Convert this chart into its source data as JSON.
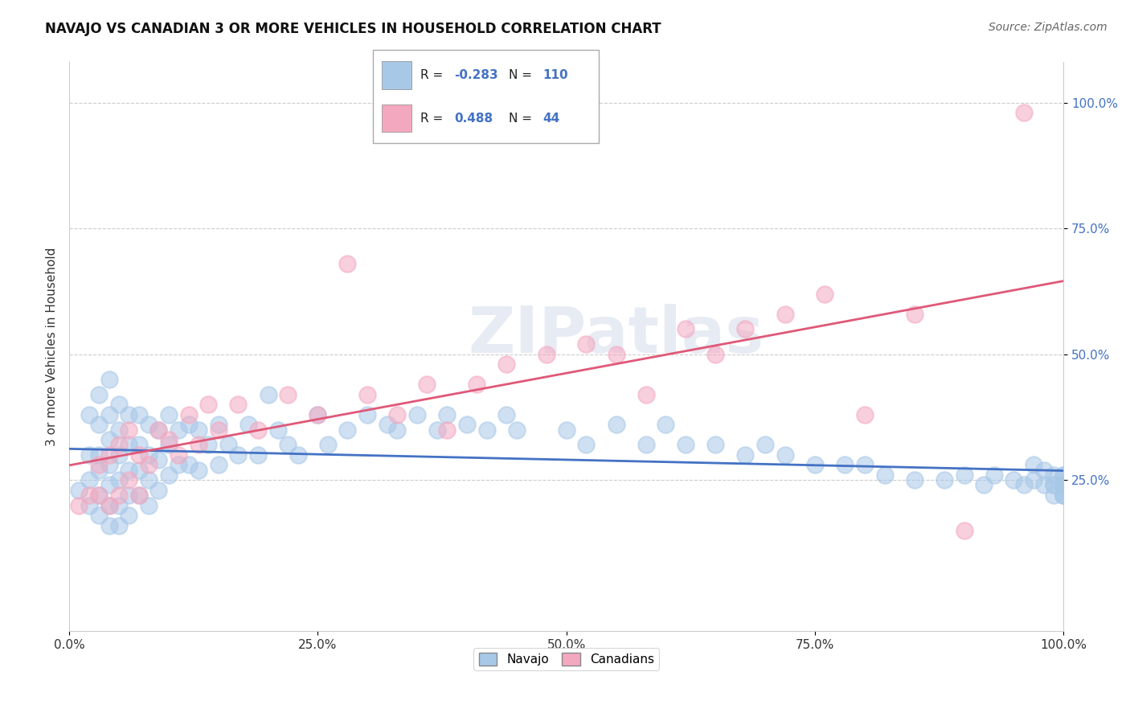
{
  "title": "NAVAJO VS CANADIAN 3 OR MORE VEHICLES IN HOUSEHOLD CORRELATION CHART",
  "source": "Source: ZipAtlas.com",
  "ylabel": "3 or more Vehicles in Household",
  "xlim": [
    0,
    1
  ],
  "ylim": [
    -0.05,
    1.08
  ],
  "xtick_labels": [
    "0.0%",
    "25.0%",
    "50.0%",
    "75.0%",
    "100.0%"
  ],
  "xtick_vals": [
    0,
    0.25,
    0.5,
    0.75,
    1.0
  ],
  "ytick_labels": [
    "25.0%",
    "50.0%",
    "75.0%",
    "100.0%"
  ],
  "ytick_vals": [
    0.25,
    0.5,
    0.75,
    1.0
  ],
  "navajo_R": -0.283,
  "navajo_N": 110,
  "canadian_R": 0.488,
  "canadian_N": 44,
  "navajo_color": "#a8c8e8",
  "canadian_color": "#f4a8c0",
  "navajo_line_color": "#4472C4",
  "canadian_line_color": "#e05878",
  "watermark": "ZIPatlas",
  "navajo_x": [
    0.01,
    0.02,
    0.02,
    0.02,
    0.02,
    0.03,
    0.03,
    0.03,
    0.03,
    0.03,
    0.03,
    0.04,
    0.04,
    0.04,
    0.04,
    0.04,
    0.04,
    0.04,
    0.05,
    0.05,
    0.05,
    0.05,
    0.05,
    0.05,
    0.06,
    0.06,
    0.06,
    0.06,
    0.06,
    0.07,
    0.07,
    0.07,
    0.07,
    0.08,
    0.08,
    0.08,
    0.08,
    0.09,
    0.09,
    0.09,
    0.1,
    0.1,
    0.1,
    0.11,
    0.11,
    0.12,
    0.12,
    0.13,
    0.13,
    0.14,
    0.15,
    0.15,
    0.16,
    0.17,
    0.18,
    0.19,
    0.2,
    0.21,
    0.22,
    0.23,
    0.25,
    0.26,
    0.28,
    0.3,
    0.32,
    0.33,
    0.35,
    0.37,
    0.38,
    0.4,
    0.42,
    0.44,
    0.45,
    0.5,
    0.52,
    0.55,
    0.58,
    0.6,
    0.62,
    0.65,
    0.68,
    0.7,
    0.72,
    0.75,
    0.78,
    0.8,
    0.82,
    0.85,
    0.88,
    0.9,
    0.92,
    0.93,
    0.95,
    0.96,
    0.97,
    0.97,
    0.98,
    0.98,
    0.99,
    0.99,
    0.99,
    0.99,
    1.0,
    1.0,
    1.0,
    1.0,
    1.0,
    1.0,
    1.0,
    1.0
  ],
  "navajo_y": [
    0.23,
    0.38,
    0.3,
    0.25,
    0.2,
    0.42,
    0.36,
    0.3,
    0.27,
    0.22,
    0.18,
    0.45,
    0.38,
    0.33,
    0.28,
    0.24,
    0.2,
    0.16,
    0.4,
    0.35,
    0.3,
    0.25,
    0.2,
    0.16,
    0.38,
    0.32,
    0.27,
    0.22,
    0.18,
    0.38,
    0.32,
    0.27,
    0.22,
    0.36,
    0.3,
    0.25,
    0.2,
    0.35,
    0.29,
    0.23,
    0.38,
    0.32,
    0.26,
    0.35,
    0.28,
    0.36,
    0.28,
    0.35,
    0.27,
    0.32,
    0.36,
    0.28,
    0.32,
    0.3,
    0.36,
    0.3,
    0.42,
    0.35,
    0.32,
    0.3,
    0.38,
    0.32,
    0.35,
    0.38,
    0.36,
    0.35,
    0.38,
    0.35,
    0.38,
    0.36,
    0.35,
    0.38,
    0.35,
    0.35,
    0.32,
    0.36,
    0.32,
    0.36,
    0.32,
    0.32,
    0.3,
    0.32,
    0.3,
    0.28,
    0.28,
    0.28,
    0.26,
    0.25,
    0.25,
    0.26,
    0.24,
    0.26,
    0.25,
    0.24,
    0.28,
    0.25,
    0.27,
    0.24,
    0.26,
    0.24,
    0.22,
    0.24,
    0.26,
    0.24,
    0.22,
    0.26,
    0.24,
    0.22,
    0.24,
    0.22
  ],
  "canadian_x": [
    0.01,
    0.02,
    0.03,
    0.03,
    0.04,
    0.04,
    0.05,
    0.05,
    0.06,
    0.06,
    0.07,
    0.07,
    0.08,
    0.09,
    0.1,
    0.11,
    0.12,
    0.13,
    0.14,
    0.15,
    0.17,
    0.19,
    0.22,
    0.25,
    0.28,
    0.3,
    0.33,
    0.36,
    0.38,
    0.41,
    0.44,
    0.48,
    0.52,
    0.55,
    0.58,
    0.62,
    0.65,
    0.68,
    0.72,
    0.76,
    0.8,
    0.85,
    0.9,
    0.96
  ],
  "canadian_y": [
    0.2,
    0.22,
    0.28,
    0.22,
    0.3,
    0.2,
    0.32,
    0.22,
    0.35,
    0.25,
    0.3,
    0.22,
    0.28,
    0.35,
    0.33,
    0.3,
    0.38,
    0.32,
    0.4,
    0.35,
    0.4,
    0.35,
    0.42,
    0.38,
    0.68,
    0.42,
    0.38,
    0.44,
    0.35,
    0.44,
    0.48,
    0.5,
    0.52,
    0.5,
    0.42,
    0.55,
    0.5,
    0.55,
    0.58,
    0.62,
    0.38,
    0.58,
    0.15,
    0.98
  ]
}
